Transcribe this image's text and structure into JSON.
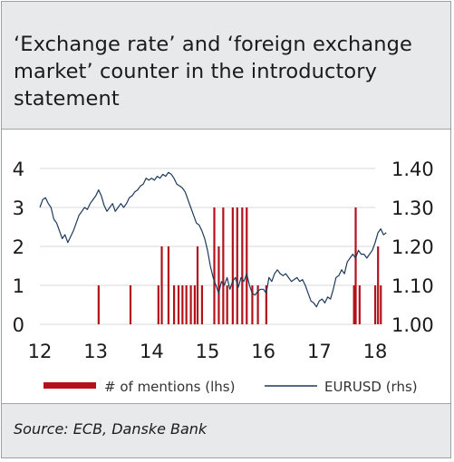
{
  "title": "‘Exchange rate’ and ‘foreign exchange market’ counter in the introductory statement",
  "source": "Source: ECB, Danske Bank",
  "colors": {
    "bars": "#b3121b",
    "line": "#1d3a5c",
    "grid": "#d9d9d9",
    "panel": "#e8e9eb"
  },
  "chart_data": {
    "type": "bar+line",
    "x_ticks": [
      "12",
      "13",
      "14",
      "15",
      "16",
      "17",
      "18"
    ],
    "left_axis": {
      "ylim": [
        0,
        4
      ],
      "ticks": [
        "0",
        "1",
        "2",
        "3",
        "4"
      ]
    },
    "right_axis": {
      "ylim": [
        1.0,
        1.4
      ],
      "ticks": [
        "1.00",
        "1.10",
        "1.20",
        "1.30",
        "1.40"
      ]
    },
    "legend": {
      "placement": "bottom",
      "bars_label": "# of mentions (lhs)",
      "line_label": "EURUSD (rhs)"
    },
    "series": [
      {
        "name": "# of mentions (lhs)",
        "axis": "left",
        "type": "bar",
        "x": [
          13.05,
          13.62,
          14.12,
          14.18,
          14.3,
          14.4,
          14.48,
          14.55,
          14.62,
          14.7,
          14.77,
          14.82,
          14.9,
          15.12,
          15.2,
          15.28,
          15.35,
          15.45,
          15.53,
          15.62,
          15.7,
          15.8,
          15.9,
          16.05,
          17.62,
          17.65,
          17.72,
          18.0,
          18.05,
          18.1
        ],
        "values": [
          1,
          1,
          1,
          2,
          2,
          1,
          1,
          1,
          1,
          1,
          1,
          2,
          1,
          3,
          2,
          3,
          1,
          3,
          3,
          3,
          3,
          1,
          1,
          1,
          1,
          3,
          1,
          1,
          2,
          1
        ]
      },
      {
        "name": "EURUSD (rhs)",
        "axis": "right",
        "type": "line",
        "points": [
          [
            12.0,
            1.3
          ],
          [
            12.05,
            1.32
          ],
          [
            12.1,
            1.325
          ],
          [
            12.15,
            1.31
          ],
          [
            12.2,
            1.3
          ],
          [
            12.25,
            1.27
          ],
          [
            12.3,
            1.26
          ],
          [
            12.35,
            1.24
          ],
          [
            12.4,
            1.22
          ],
          [
            12.45,
            1.23
          ],
          [
            12.5,
            1.21
          ],
          [
            12.55,
            1.225
          ],
          [
            12.6,
            1.24
          ],
          [
            12.65,
            1.26
          ],
          [
            12.7,
            1.28
          ],
          [
            12.75,
            1.29
          ],
          [
            12.8,
            1.3
          ],
          [
            12.85,
            1.295
          ],
          [
            12.9,
            1.31
          ],
          [
            12.95,
            1.32
          ],
          [
            13.0,
            1.33
          ],
          [
            13.05,
            1.345
          ],
          [
            13.1,
            1.33
          ],
          [
            13.15,
            1.305
          ],
          [
            13.2,
            1.29
          ],
          [
            13.25,
            1.3
          ],
          [
            13.3,
            1.31
          ],
          [
            13.35,
            1.29
          ],
          [
            13.4,
            1.3
          ],
          [
            13.45,
            1.31
          ],
          [
            13.5,
            1.3
          ],
          [
            13.55,
            1.31
          ],
          [
            13.6,
            1.325
          ],
          [
            13.65,
            1.33
          ],
          [
            13.7,
            1.34
          ],
          [
            13.75,
            1.345
          ],
          [
            13.8,
            1.355
          ],
          [
            13.85,
            1.36
          ],
          [
            13.9,
            1.375
          ],
          [
            13.95,
            1.37
          ],
          [
            14.0,
            1.375
          ],
          [
            14.05,
            1.37
          ],
          [
            14.1,
            1.38
          ],
          [
            14.15,
            1.375
          ],
          [
            14.2,
            1.385
          ],
          [
            14.25,
            1.38
          ],
          [
            14.3,
            1.39
          ],
          [
            14.35,
            1.385
          ],
          [
            14.4,
            1.375
          ],
          [
            14.45,
            1.36
          ],
          [
            14.5,
            1.355
          ],
          [
            14.55,
            1.35
          ],
          [
            14.6,
            1.34
          ],
          [
            14.65,
            1.32
          ],
          [
            14.7,
            1.3
          ],
          [
            14.75,
            1.28
          ],
          [
            14.8,
            1.26
          ],
          [
            14.85,
            1.255
          ],
          [
            14.9,
            1.24
          ],
          [
            14.95,
            1.22
          ],
          [
            15.0,
            1.19
          ],
          [
            15.05,
            1.15
          ],
          [
            15.1,
            1.12
          ],
          [
            15.15,
            1.1
          ],
          [
            15.2,
            1.08
          ],
          [
            15.25,
            1.11
          ],
          [
            15.3,
            1.1
          ],
          [
            15.35,
            1.12
          ],
          [
            15.4,
            1.09
          ],
          [
            15.45,
            1.11
          ],
          [
            15.5,
            1.12
          ],
          [
            15.55,
            1.095
          ],
          [
            15.6,
            1.12
          ],
          [
            15.65,
            1.11
          ],
          [
            15.7,
            1.13
          ],
          [
            15.75,
            1.1
          ],
          [
            15.8,
            1.08
          ],
          [
            15.85,
            1.075
          ],
          [
            15.9,
            1.085
          ],
          [
            15.95,
            1.09
          ],
          [
            16.0,
            1.09
          ],
          [
            16.05,
            1.08
          ],
          [
            16.1,
            1.12
          ],
          [
            16.15,
            1.11
          ],
          [
            16.2,
            1.13
          ],
          [
            16.25,
            1.14
          ],
          [
            16.3,
            1.13
          ],
          [
            16.35,
            1.125
          ],
          [
            16.4,
            1.13
          ],
          [
            16.45,
            1.12
          ],
          [
            16.5,
            1.11
          ],
          [
            16.55,
            1.115
          ],
          [
            16.6,
            1.12
          ],
          [
            16.65,
            1.11
          ],
          [
            16.7,
            1.115
          ],
          [
            16.75,
            1.1
          ],
          [
            16.8,
            1.08
          ],
          [
            16.85,
            1.06
          ],
          [
            16.9,
            1.055
          ],
          [
            16.95,
            1.045
          ],
          [
            17.0,
            1.06
          ],
          [
            17.05,
            1.065
          ],
          [
            17.1,
            1.055
          ],
          [
            17.15,
            1.07
          ],
          [
            17.2,
            1.065
          ],
          [
            17.25,
            1.09
          ],
          [
            17.3,
            1.12
          ],
          [
            17.35,
            1.125
          ],
          [
            17.4,
            1.14
          ],
          [
            17.45,
            1.13
          ],
          [
            17.5,
            1.16
          ],
          [
            17.55,
            1.17
          ],
          [
            17.6,
            1.18
          ],
          [
            17.65,
            1.17
          ],
          [
            17.7,
            1.19
          ],
          [
            17.75,
            1.18
          ],
          [
            17.8,
            1.18
          ],
          [
            17.85,
            1.17
          ],
          [
            17.9,
            1.18
          ],
          [
            17.95,
            1.19
          ],
          [
            18.0,
            1.21
          ],
          [
            18.05,
            1.235
          ],
          [
            18.1,
            1.245
          ],
          [
            18.15,
            1.23
          ],
          [
            18.2,
            1.235
          ]
        ]
      }
    ]
  }
}
